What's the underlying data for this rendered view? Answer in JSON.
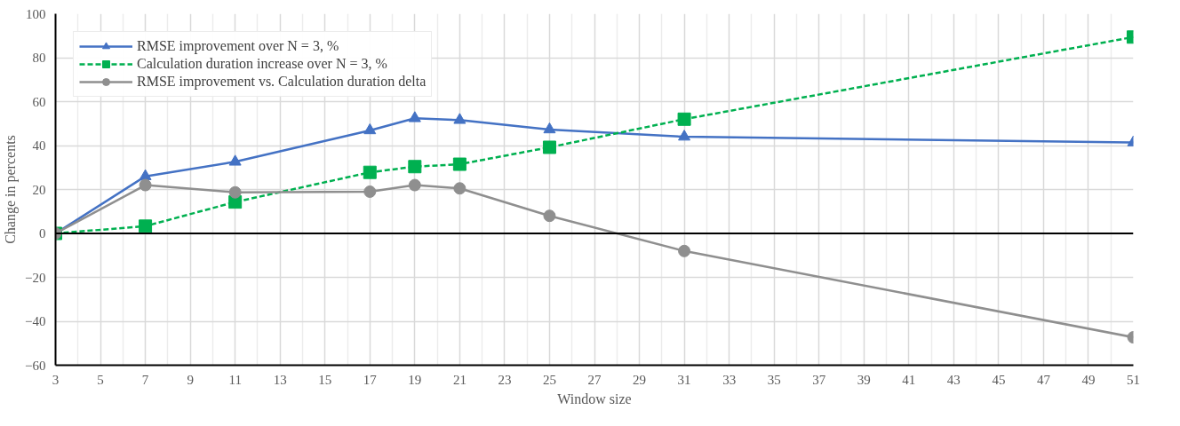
{
  "chart_data": {
    "type": "line",
    "xlabel": "Window size",
    "ylabel": "Change in percents",
    "x": [
      3,
      7,
      11,
      17,
      19,
      21,
      25,
      31,
      51
    ],
    "xlim": [
      3,
      51
    ],
    "xticks": [
      3,
      5,
      7,
      9,
      11,
      13,
      15,
      17,
      19,
      21,
      23,
      25,
      27,
      29,
      31,
      33,
      35,
      37,
      39,
      41,
      43,
      45,
      47,
      49,
      51
    ],
    "ylim": [
      -60,
      100
    ],
    "yticks": [
      -60,
      -40,
      -20,
      0,
      20,
      40,
      60,
      80,
      100
    ],
    "grid": true,
    "legend": "top left",
    "series": [
      {
        "name": "RMSE improvement over N = 3, %",
        "color": "#4472c4",
        "marker": "triangle",
        "line_style": "solid",
        "values": [
          0,
          26,
          32.6,
          46.9,
          52.4,
          51.6,
          47.3,
          44,
          41.4
        ]
      },
      {
        "name": "Calculation duration increase over N = 3, %",
        "color": "#00b050",
        "marker": "square",
        "line_style": "dashed",
        "values": [
          0,
          3.3,
          14.3,
          27.8,
          30.4,
          31.5,
          39.2,
          52,
          89.4
        ]
      },
      {
        "name": "RMSE improvement vs. Calculation duration delta",
        "color": "#8f8f8f",
        "marker": "circle",
        "line_style": "solid",
        "values": [
          0,
          22,
          18.7,
          19,
          22,
          20.5,
          8,
          -8,
          -47.3
        ]
      }
    ]
  }
}
